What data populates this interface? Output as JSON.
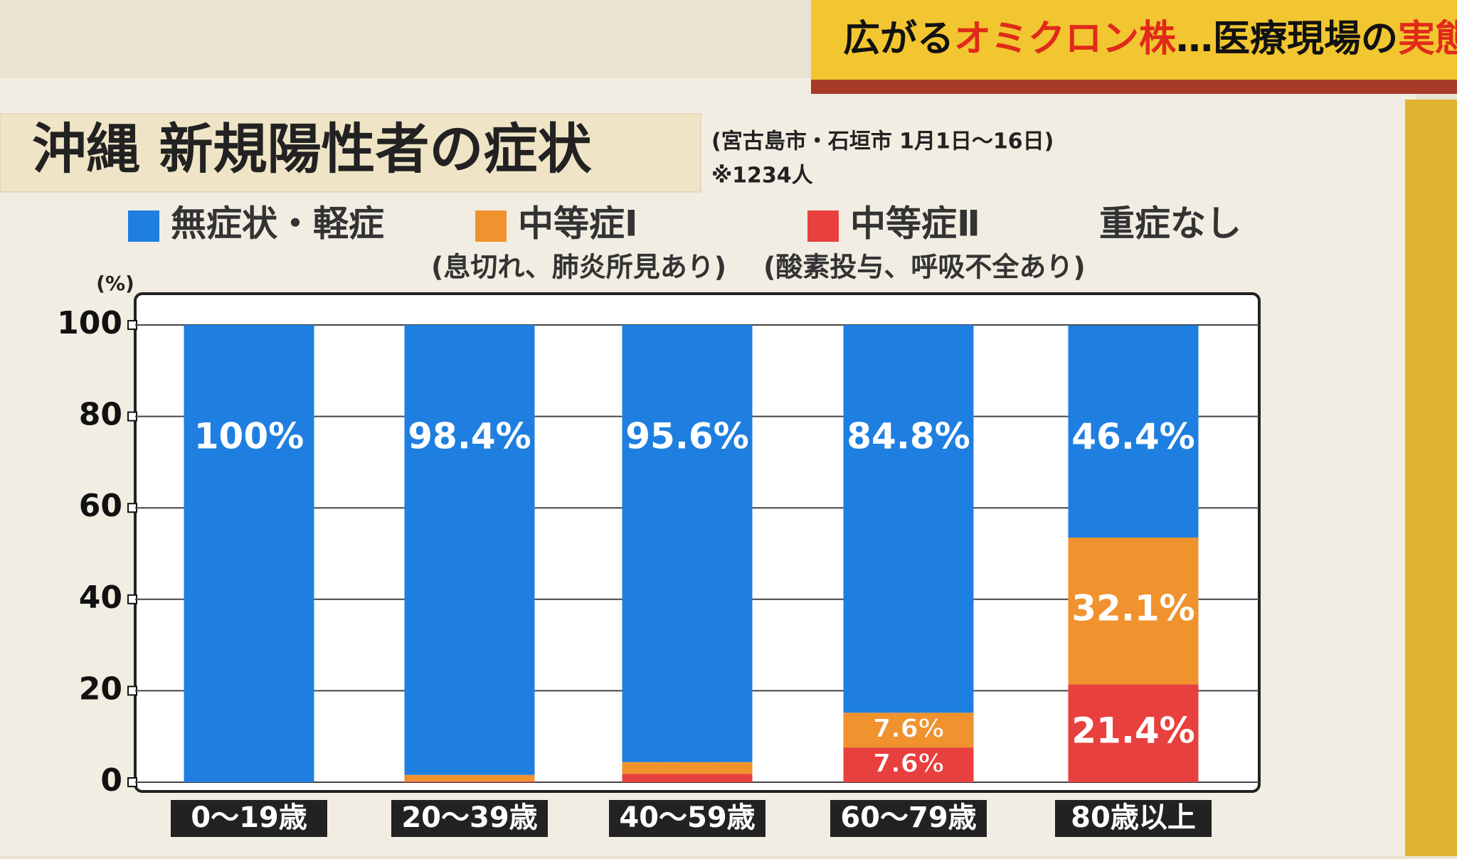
{
  "banner": {
    "parts": [
      "広がる",
      "オミクロン株",
      "…医療現場の",
      "実態"
    ]
  },
  "chart_data": {
    "type": "stacked-bar",
    "title": "沖縄 新規陽性者の症状",
    "subtitle": "(宮古島市・石垣市 1月1日〜16日)",
    "note": "※1234人",
    "extra_legend": "重症なし",
    "y_label": "(%)",
    "categories": [
      "0〜19歳",
      "20〜39歳",
      "40〜59歳",
      "60〜79歳",
      "80歳以上"
    ],
    "series": [
      {
        "name": "無症状・軽症",
        "color": "#1f7fe0",
        "values": [
          100,
          98.4,
          95.6,
          84.8,
          46.4
        ],
        "value_labels": [
          "100%",
          "98.4%",
          "95.6%",
          "84.8%",
          "46.4%"
        ]
      },
      {
        "name": "中等症Ⅰ",
        "description": "(息切れ、肺炎所見あり)",
        "color": "#f0922e",
        "values": [
          0,
          1.4,
          2.6,
          7.6,
          32.1
        ],
        "value_labels": [
          null,
          "1.4%",
          "2.6%",
          "7.6%",
          "32.1%"
        ]
      },
      {
        "name": "中等症Ⅱ",
        "description": "(酸素投与、呼吸不全あり)",
        "color": "#e8403e",
        "values": [
          0,
          0.2,
          1.8,
          7.6,
          21.4
        ],
        "value_labels": [
          null,
          "0.2%",
          "1.8%",
          "7.6%",
          "21.4%"
        ]
      }
    ],
    "ylim": [
      0,
      100
    ],
    "yticks": [
      0,
      20,
      40,
      60,
      80,
      100
    ],
    "grid": true
  }
}
